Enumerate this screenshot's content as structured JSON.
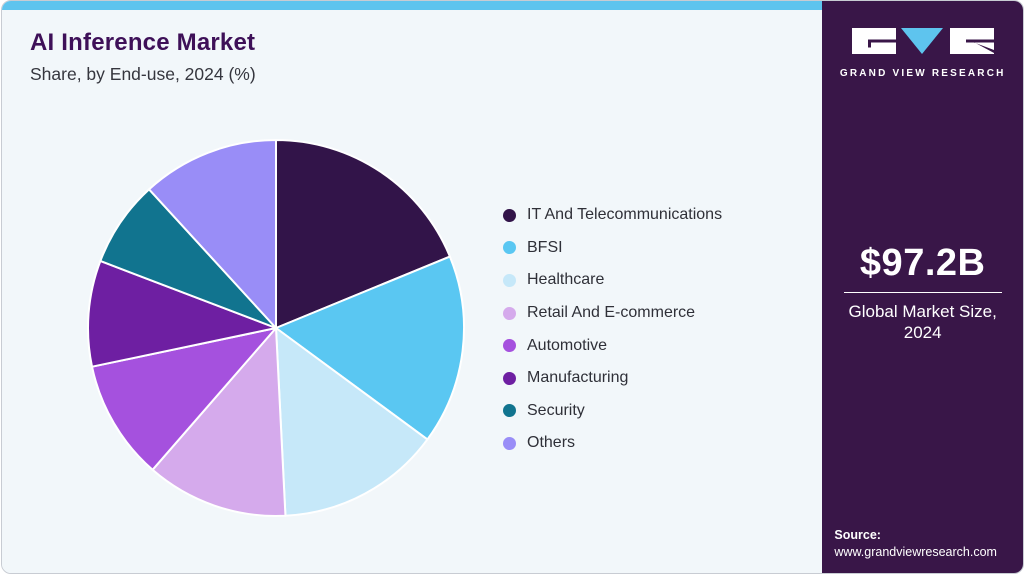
{
  "header": {
    "title": "AI Inference Market",
    "subtitle": "Share, by End-use, 2024 (%)"
  },
  "sidebar": {
    "logo_text": "GRAND VIEW RESEARCH",
    "market_size_value": "$97.2B",
    "market_size_label": "Global Market Size, 2024",
    "source_label": "Source:",
    "source_url": "www.grandviewresearch.com",
    "background_color": "#391648",
    "accent_color": "#5ec4ee"
  },
  "chart_data": {
    "type": "pie",
    "title": "AI Inference Market",
    "subtitle": "Share, by End-use, 2024 (%)",
    "unit": "%",
    "start_angle_deg": 0,
    "direction": "clockwise",
    "legend_position": "right",
    "segments": [
      {
        "label": "IT And Telecommunications",
        "value": 18.8,
        "color": "#321449"
      },
      {
        "label": "BFSI",
        "value": 16.3,
        "color": "#5ac7f2"
      },
      {
        "label": "Healthcare",
        "value": 14.1,
        "color": "#c6e8f9"
      },
      {
        "label": "Retail And E-commerce",
        "value": 12.2,
        "color": "#d5aaec"
      },
      {
        "label": "Automotive",
        "value": 10.3,
        "color": "#a551de"
      },
      {
        "label": "Manufacturing",
        "value": 9.1,
        "color": "#6e1fa2"
      },
      {
        "label": "Security",
        "value": 7.4,
        "color": "#11748f"
      },
      {
        "label": "Others",
        "value": 11.8,
        "color": "#998df7"
      }
    ]
  }
}
